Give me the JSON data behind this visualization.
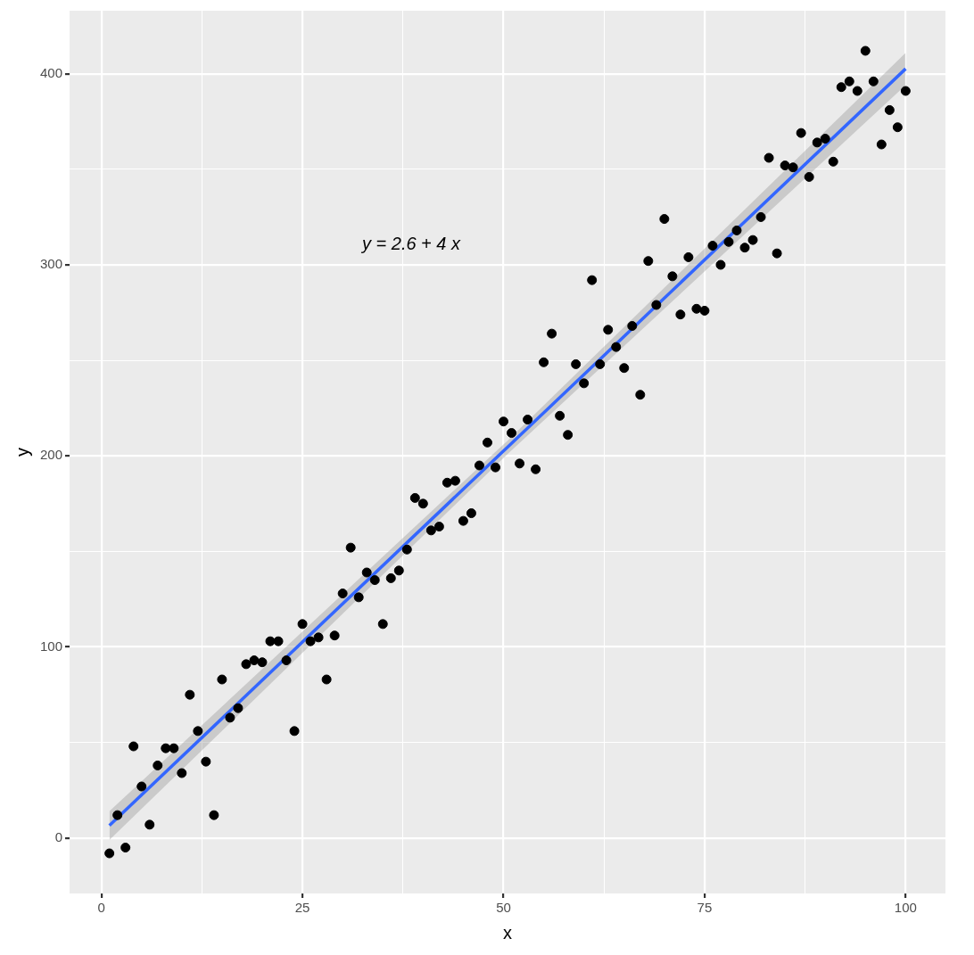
{
  "chart_data": {
    "type": "scatter",
    "xlabel": "x",
    "ylabel": "y",
    "xlim": [
      -3.95,
      104.95
    ],
    "ylim": [
      -29,
      433
    ],
    "xticks": [
      0,
      {
        "value": 12.5,
        "label": null
      },
      25,
      {
        "value": 37.5,
        "label": null
      },
      50,
      {
        "value": 62.5,
        "label": null
      },
      75,
      {
        "value": 87.5,
        "label": null
      },
      100
    ],
    "yticks": [
      0,
      {
        "value": 50,
        "label": null
      },
      100,
      {
        "value": 150,
        "label": null
      },
      200,
      {
        "value": 250,
        "label": null
      },
      300,
      {
        "value": 350,
        "label": null
      },
      400
    ],
    "grid": true,
    "legend": false,
    "annotations": [
      "y = 2.6 + 4 x"
    ],
    "series": [
      {
        "marker": "circle",
        "color": "#000000",
        "x": [
          1,
          2,
          3,
          4,
          5,
          6,
          7,
          8,
          9,
          10,
          11,
          12,
          13,
          14,
          15,
          16,
          17,
          18,
          19,
          20,
          21,
          22,
          23,
          24,
          25,
          26,
          27,
          28,
          29,
          30,
          31,
          32,
          33,
          34,
          35,
          36,
          37,
          38,
          39,
          40,
          41,
          42,
          43,
          44,
          45,
          46,
          47,
          48,
          49,
          50,
          51,
          52,
          53,
          54,
          55,
          56,
          57,
          58,
          59,
          60,
          61,
          62,
          63,
          64,
          65,
          66,
          67,
          68,
          69,
          70,
          71,
          72,
          73,
          74,
          75,
          76,
          77,
          78,
          79,
          80,
          81,
          82,
          83,
          84,
          85,
          86,
          87,
          88,
          89,
          90,
          91,
          92,
          93,
          94,
          95,
          96,
          97,
          98,
          99,
          100
        ],
        "values": [
          -8,
          12,
          -5,
          48,
          27,
          7,
          38,
          47,
          47,
          34,
          75,
          56,
          40,
          12,
          83,
          63,
          68,
          91,
          93,
          92,
          103,
          103,
          93,
          56,
          112,
          103,
          105,
          83,
          106,
          128,
          152,
          126,
          139,
          135,
          112,
          136,
          140,
          151,
          178,
          175,
          161,
          163,
          186,
          187,
          166,
          170,
          195,
          207,
          194,
          218,
          212,
          196,
          219,
          193,
          249,
          264,
          221,
          211,
          248,
          238,
          292,
          248,
          266,
          257,
          246,
          268,
          232,
          302,
          279,
          324,
          294,
          274,
          304,
          277,
          276,
          310,
          300,
          312,
          318,
          309,
          313,
          325,
          356,
          306,
          352,
          351,
          369,
          346,
          364,
          366,
          354,
          393,
          396,
          391,
          412,
          396,
          363,
          381,
          372,
          391
        ]
      },
      {
        "type": "line",
        "color": "#3366ff",
        "x": [
          1,
          50.5,
          100
        ],
        "values": [
          6.6,
          204.6,
          402.6
        ],
        "lower": [
          -1,
          201,
          394
        ],
        "upper": [
          14,
          208,
          411
        ]
      }
    ]
  }
}
